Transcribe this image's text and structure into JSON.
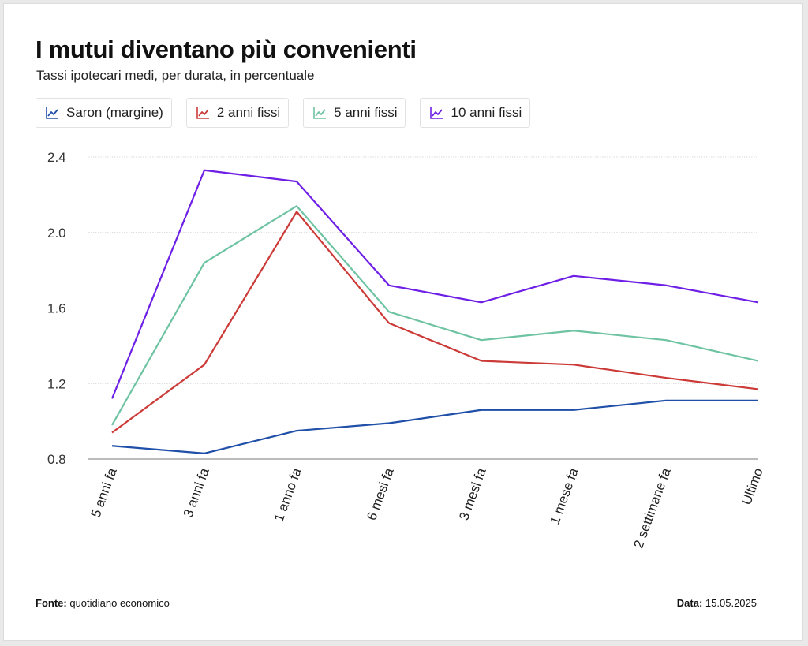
{
  "header": {
    "title": "I mutui diventano più convenienti",
    "subtitle": "Tassi ipotecari medi, per durata, in percentuale"
  },
  "footer": {
    "source_label": "Fonte:",
    "source_value": "quotidiano economico",
    "date_label": "Data:",
    "date_value": "15.05.2025"
  },
  "legend_icon": "line-chart-icon",
  "chart_data": {
    "type": "line",
    "title": "I mutui diventano più convenienti",
    "subtitle": "Tassi ipotecari medi, per durata, in percentuale",
    "xlabel": "",
    "ylabel": "",
    "categories": [
      "5 anni fa",
      "3 anni fa",
      "1 anno fa",
      "6 mesi fa",
      "3 mesi fa",
      "1 mese fa",
      "2 settimane fa",
      "Ultimo"
    ],
    "ylim": [
      0.8,
      2.4
    ],
    "yticks": [
      0.8,
      1.2,
      1.6,
      2.0,
      2.4
    ],
    "ytick_labels": [
      "0.8",
      "1.2",
      "1.6",
      "2.0",
      "2.4"
    ],
    "grid": true,
    "legend_position": "top-left",
    "series": [
      {
        "name": "Saron (margine)",
        "color": "#1f4fa8",
        "values": [
          0.87,
          0.83,
          0.95,
          0.99,
          1.06,
          1.06,
          1.11,
          1.11
        ]
      },
      {
        "name": "2 anni fissi",
        "color": "#cc3a37",
        "values": [
          0.94,
          1.3,
          2.11,
          1.52,
          1.32,
          1.3,
          1.23,
          1.17
        ]
      },
      {
        "name": "5 anni fissi",
        "color": "#6ec3a2",
        "values": [
          0.98,
          1.84,
          2.14,
          1.58,
          1.43,
          1.48,
          1.43,
          1.32
        ]
      },
      {
        "name": "10 anni fissi",
        "color": "#6e1fe6",
        "values": [
          1.12,
          2.33,
          2.27,
          1.72,
          1.63,
          1.77,
          1.72,
          1.63
        ]
      }
    ]
  }
}
